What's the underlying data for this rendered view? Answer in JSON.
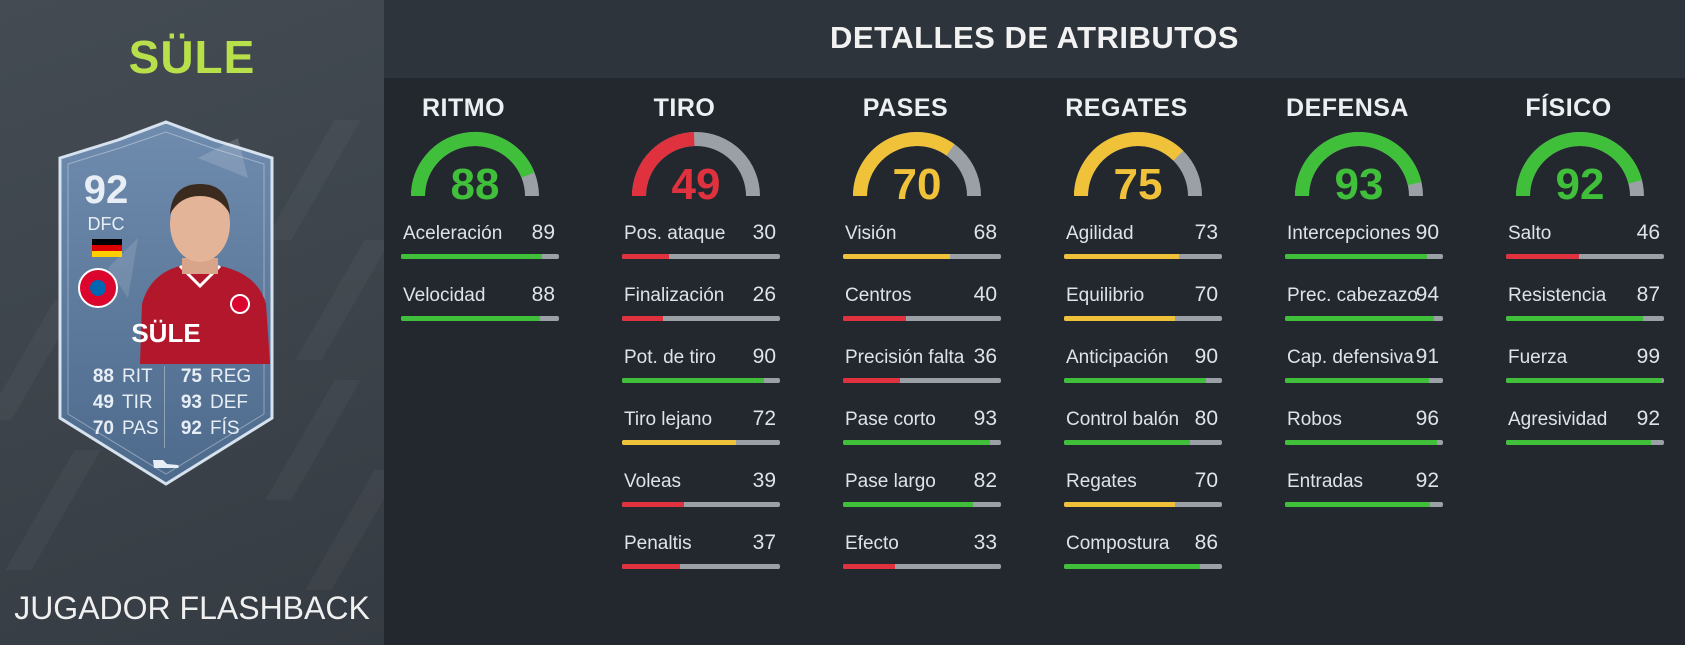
{
  "player": {
    "title": "SÜLE",
    "card": {
      "rating": "92",
      "position": "DFC",
      "name": "SÜLE",
      "stats_left": [
        {
          "value": "88",
          "label": "RIT"
        },
        {
          "value": "49",
          "label": "TIR"
        },
        {
          "value": "70",
          "label": "PAS"
        }
      ],
      "stats_right": [
        {
          "value": "75",
          "label": "REG"
        },
        {
          "value": "93",
          "label": "DEF"
        },
        {
          "value": "92",
          "label": "FÍS"
        }
      ],
      "flag_icon": "germany-flag-icon",
      "club_icon": "fc-bayern-badge-icon"
    },
    "promo": "JUGADOR FLASHBACK"
  },
  "page_title": "DETALLES DE ATRIBUTOS",
  "colors": {
    "green": "#3fbf3a",
    "yellow": "#f0c23a",
    "red": "#e0313f",
    "track": "#9aa0a6",
    "title_green": "#b8e04a"
  },
  "categories": [
    {
      "name": "RITMO",
      "value": 88,
      "attributes": [
        {
          "name": "Aceleración",
          "value": 89
        },
        {
          "name": "Velocidad",
          "value": 88
        }
      ]
    },
    {
      "name": "TIRO",
      "value": 49,
      "attributes": [
        {
          "name": "Pos. ataque",
          "value": 30
        },
        {
          "name": "Finalización",
          "value": 26
        },
        {
          "name": "Pot. de tiro",
          "value": 90
        },
        {
          "name": "Tiro lejano",
          "value": 72
        },
        {
          "name": "Voleas",
          "value": 39
        },
        {
          "name": "Penaltis",
          "value": 37
        }
      ]
    },
    {
      "name": "PASES",
      "value": 70,
      "attributes": [
        {
          "name": "Visión",
          "value": 68
        },
        {
          "name": "Centros",
          "value": 40
        },
        {
          "name": "Precisión falta",
          "value": 36
        },
        {
          "name": "Pase corto",
          "value": 93
        },
        {
          "name": "Pase largo",
          "value": 82
        },
        {
          "name": "Efecto",
          "value": 33
        }
      ]
    },
    {
      "name": "REGATES",
      "value": 75,
      "attributes": [
        {
          "name": "Agilidad",
          "value": 73
        },
        {
          "name": "Equilibrio",
          "value": 70
        },
        {
          "name": "Anticipación",
          "value": 90
        },
        {
          "name": "Control balón",
          "value": 80
        },
        {
          "name": "Regates",
          "value": 70
        },
        {
          "name": "Compostura",
          "value": 86
        }
      ]
    },
    {
      "name": "DEFENSA",
      "value": 93,
      "attributes": [
        {
          "name": "Intercepciones",
          "value": 90
        },
        {
          "name": "Prec. cabezazo",
          "value": 94
        },
        {
          "name": "Cap. defensiva",
          "value": 91
        },
        {
          "name": "Robos",
          "value": 96
        },
        {
          "name": "Entradas",
          "value": 92
        }
      ]
    },
    {
      "name": "FÍSICO",
      "value": 92,
      "attributes": [
        {
          "name": "Salto",
          "value": 46
        },
        {
          "name": "Resistencia",
          "value": 87
        },
        {
          "name": "Fuerza",
          "value": 99
        },
        {
          "name": "Agresividad",
          "value": 92
        }
      ]
    }
  ]
}
